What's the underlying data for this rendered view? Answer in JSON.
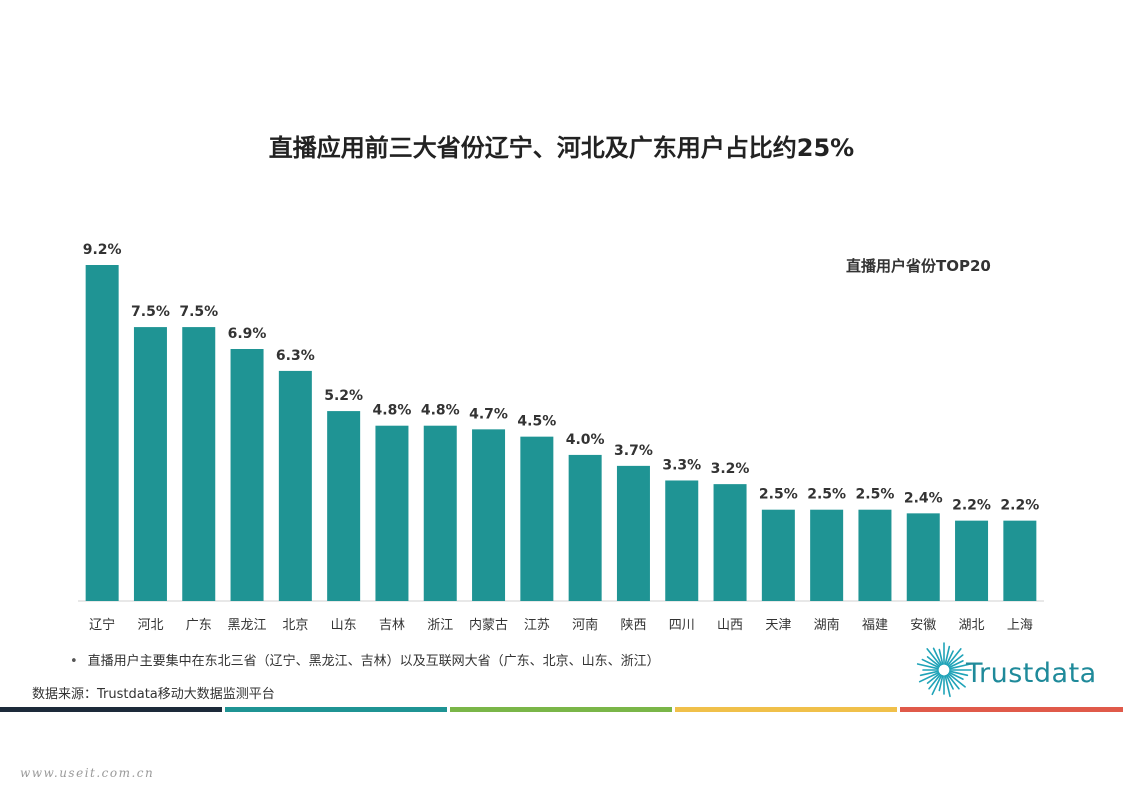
{
  "title": "直播应用前三大省份辽宁、河北及广东用户占比约25%",
  "chart_data": {
    "type": "bar",
    "title": "直播用户省份TOP20",
    "xlabel": "",
    "ylabel": "",
    "unit": "%",
    "categories": [
      "辽宁",
      "河北",
      "广东",
      "黑龙江",
      "北京",
      "山东",
      "吉林",
      "浙江",
      "内蒙古",
      "江苏",
      "河南",
      "陕西",
      "四川",
      "山西",
      "天津",
      "湖南",
      "福建",
      "安徽",
      "湖北",
      "上海"
    ],
    "values": [
      9.2,
      7.5,
      7.5,
      6.9,
      6.3,
      5.2,
      4.8,
      4.8,
      4.7,
      4.5,
      4.0,
      3.7,
      3.3,
      3.2,
      2.5,
      2.5,
      2.5,
      2.4,
      2.2,
      2.2
    ],
    "value_labels": [
      "9.2%",
      "7.5%",
      "7.5%",
      "6.9%",
      "6.3%",
      "5.2%",
      "4.8%",
      "4.8%",
      "4.7%",
      "4.5%",
      "4.0%",
      "3.7%",
      "3.3%",
      "3.2%",
      "2.5%",
      "2.5%",
      "2.5%",
      "2.4%",
      "2.2%",
      "2.2%"
    ],
    "ylim": [
      0,
      9.2
    ],
    "grid": false,
    "bar_color": "#1f9494"
  },
  "note": "直播用户主要集中在东北三省（辽宁、黑龙江、吉林）以及互联网大省（广东、北京、山东、浙江）",
  "note_bullet": "•",
  "source": "数据来源：Trustdata移动大数据监测平台",
  "logo_text": "Trustdata",
  "stripe_colors": [
    "#1d2a3a",
    "#1f9494",
    "#7ab648",
    "#f0c04a",
    "#e05a4a"
  ],
  "watermark": "www.useit.com.cn"
}
